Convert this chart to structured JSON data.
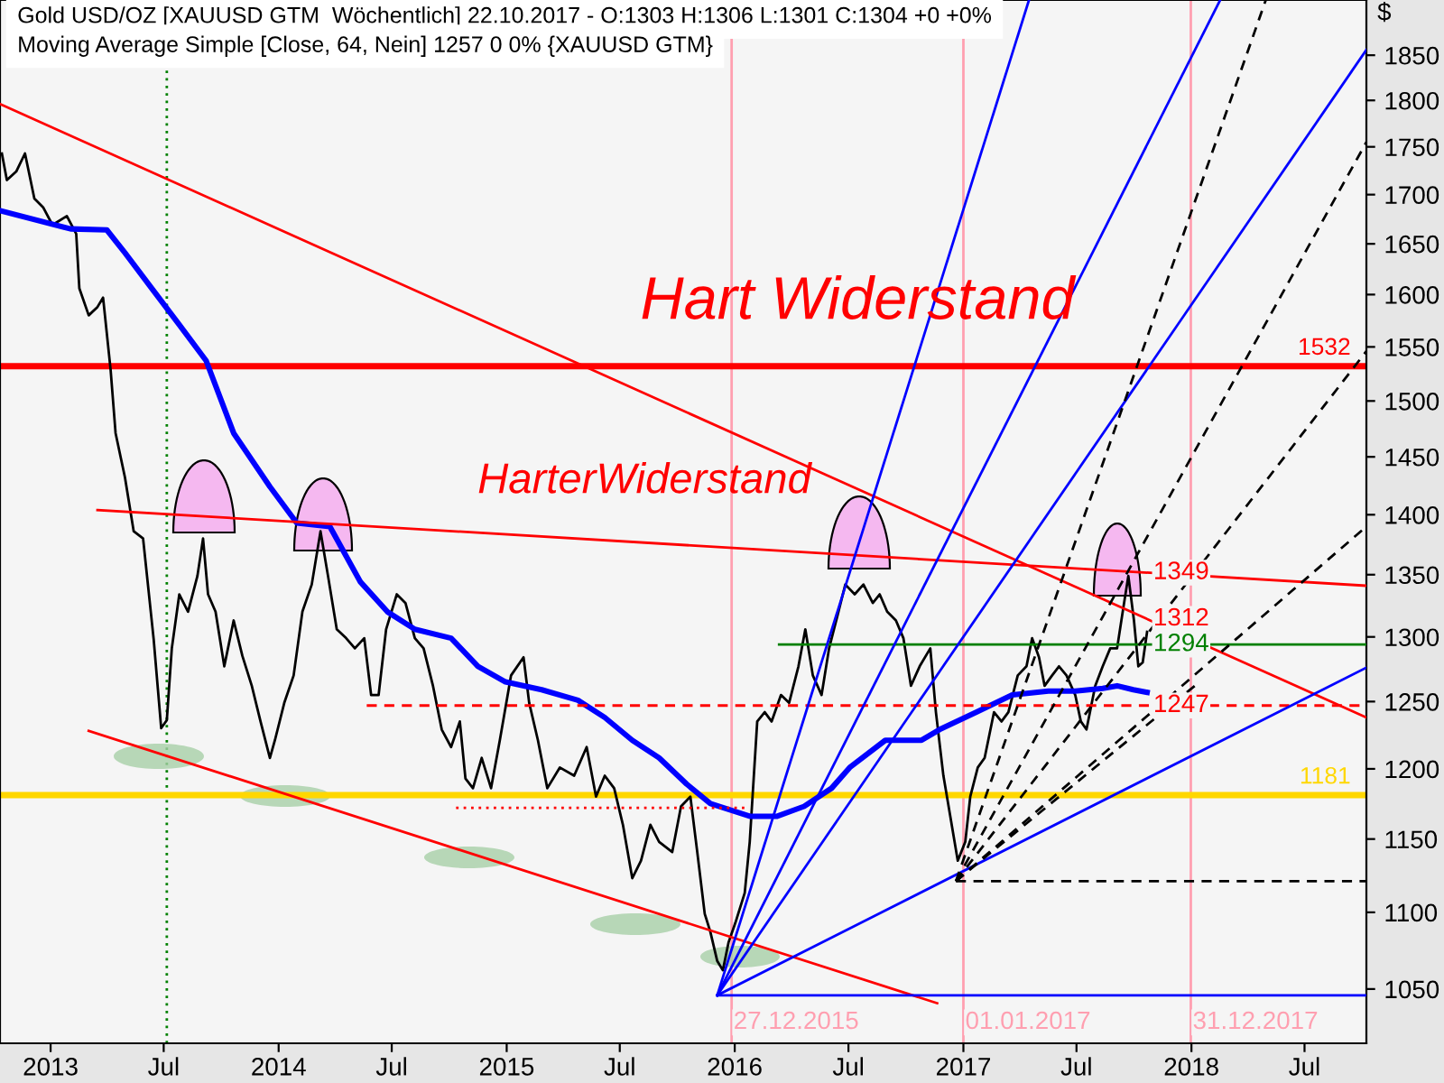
{
  "chart_data": {
    "type": "line",
    "title": "Gold USD/OZ [XAUUSD GTM  Wöchentlich] 22.10.2017 - O:1303 H:1306 L:1301 C:1304 +0 +0%",
    "subtitle": "Moving Average Simple [Close, 64, Nein] 1257 0 0% {XAUUSD GTM}",
    "ylabel": "$",
    "log": "y",
    "xlim": [
      "2012-10-12",
      "2018-10-08"
    ],
    "ylim": [
      1016,
      1913
    ],
    "xticks": [
      {
        "value": "2013-01-01",
        "label": "2013"
      },
      {
        "value": "2013-07-01",
        "label": "Jul"
      },
      {
        "value": "2014-01-01",
        "label": "2014"
      },
      {
        "value": "2014-07-01",
        "label": "Jul"
      },
      {
        "value": "2015-01-01",
        "label": "2015"
      },
      {
        "value": "2015-07-01",
        "label": "Jul"
      },
      {
        "value": "2016-01-01",
        "label": "2016"
      },
      {
        "value": "2016-07-01",
        "label": "Jul"
      },
      {
        "value": "2017-01-01",
        "label": "2017"
      },
      {
        "value": "2017-07-01",
        "label": "Jul"
      },
      {
        "value": "2018-01-01",
        "label": "2018"
      },
      {
        "value": "2018-07-01",
        "label": "Jul"
      }
    ],
    "yticks": [
      1050,
      1100,
      1150,
      1200,
      1250,
      1300,
      1350,
      1400,
      1450,
      1500,
      1550,
      1600,
      1650,
      1700,
      1750,
      1800,
      1850
    ],
    "marker": "none",
    "series": [
      {
        "color": "#000000",
        "x": [
          "2012-10-15",
          "2012-10-23",
          "2012-11-07",
          "2012-11-21",
          "2012-12-06",
          "2012-12-20",
          "2013-01-04",
          "2013-01-27",
          "2013-02-11",
          "2013-02-16",
          "2013-03-03",
          "2013-03-17",
          "2013-03-26",
          "2013-04-07",
          "2013-04-15",
          "2013-04-30",
          "2013-05-14",
          "2013-05-29",
          "2013-06-15",
          "2013-06-27",
          "2013-07-06",
          "2013-07-14",
          "2013-07-26",
          "2013-08-09",
          "2013-08-24",
          "2013-09-02",
          "2013-09-10",
          "2013-09-22",
          "2013-10-06",
          "2013-10-21",
          "2013-11-04",
          "2013-11-19",
          "2013-12-03",
          "2013-12-18",
          "2013-12-26",
          "2014-01-10",
          "2014-01-25",
          "2014-02-08",
          "2014-02-23",
          "2014-03-09",
          "2014-03-21",
          "2014-04-04",
          "2014-04-19",
          "2014-05-03",
          "2014-05-18",
          "2014-05-29",
          "2014-06-10",
          "2014-06-22",
          "2014-07-09",
          "2014-07-23",
          "2014-08-07",
          "2014-08-21",
          "2014-09-05",
          "2014-09-19",
          "2014-10-04",
          "2014-10-18",
          "2014-10-27",
          "2014-11-08",
          "2014-11-22",
          "2014-12-07",
          "2014-12-21",
          "2015-01-08",
          "2015-01-28",
          "2015-02-06",
          "2015-02-20",
          "2015-03-07",
          "2015-03-27",
          "2015-04-19",
          "2015-05-09",
          "2015-05-24",
          "2015-06-07",
          "2015-06-22",
          "2015-07-06",
          "2015-07-21",
          "2015-08-04",
          "2015-08-19",
          "2015-09-02",
          "2015-09-23",
          "2015-10-07",
          "2015-10-22",
          "2015-11-02",
          "2015-11-14",
          "2015-11-23",
          "2015-12-04",
          "2015-12-13",
          "2015-12-22",
          "2016-01-02",
          "2016-01-17",
          "2016-01-25",
          "2016-02-06",
          "2016-02-18",
          "2016-02-29",
          "2016-03-15",
          "2016-03-28",
          "2016-04-12",
          "2016-04-23",
          "2016-05-05",
          "2016-05-19",
          "2016-05-31",
          "2016-06-15",
          "2016-06-26",
          "2016-07-11",
          "2016-07-25",
          "2016-08-09",
          "2016-08-20",
          "2016-09-01",
          "2016-09-15",
          "2016-09-27",
          "2016-10-09",
          "2016-10-23",
          "2016-11-09",
          "2016-11-18",
          "2016-11-30",
          "2016-12-11",
          "2016-12-23",
          "2017-01-04",
          "2017-01-12",
          "2017-01-24",
          "2017-02-04",
          "2017-02-19",
          "2017-03-03",
          "2017-03-14",
          "2017-03-29",
          "2017-04-12",
          "2017-04-21",
          "2017-05-02",
          "2017-05-11",
          "2017-05-23",
          "2017-06-03",
          "2017-06-15",
          "2017-06-29",
          "2017-07-08",
          "2017-07-17",
          "2017-07-31",
          "2017-08-12",
          "2017-08-24",
          "2017-09-04",
          "2017-09-13",
          "2017-09-22",
          "2017-10-01",
          "2017-10-08",
          "2017-10-15",
          "2017-10-22"
        ],
        "values": [
          1743,
          1715,
          1724,
          1743,
          1696,
          1687,
          1669,
          1678,
          1660,
          1606,
          1580,
          1588,
          1597,
          1529,
          1471,
          1432,
          1386,
          1380,
          1298,
          1230,
          1236,
          1291,
          1334,
          1320,
          1349,
          1380,
          1334,
          1320,
          1277,
          1313,
          1285,
          1262,
          1235,
          1208,
          1221,
          1249,
          1270,
          1320,
          1342,
          1386,
          1349,
          1306,
          1299,
          1291,
          1299,
          1255,
          1255,
          1306,
          1334,
          1327,
          1299,
          1291,
          1262,
          1229,
          1216,
          1235,
          1193,
          1186,
          1208,
          1186,
          1221,
          1270,
          1284,
          1249,
          1221,
          1186,
          1201,
          1195,
          1216,
          1180,
          1195,
          1186,
          1160,
          1123,
          1135,
          1160,
          1148,
          1141,
          1173,
          1180,
          1141,
          1099,
          1087,
          1068,
          1062,
          1080,
          1093,
          1113,
          1148,
          1235,
          1242,
          1235,
          1255,
          1249,
          1277,
          1306,
          1270,
          1255,
          1291,
          1320,
          1342,
          1334,
          1342,
          1327,
          1334,
          1320,
          1313,
          1299,
          1262,
          1277,
          1291,
          1242,
          1195,
          1166,
          1135,
          1148,
          1180,
          1201,
          1208,
          1242,
          1235,
          1242,
          1270,
          1277,
          1299,
          1284,
          1262,
          1270,
          1277,
          1270,
          1255,
          1235,
          1229,
          1262,
          1277,
          1291,
          1291,
          1320,
          1349,
          1313,
          1277,
          1280,
          1304
        ]
      },
      {
        "color": "#0000ff",
        "x": [
          "2012-10-15",
          "2013-02-02",
          "2013-04-01",
          "2013-04-30",
          "2013-06-12",
          "2013-07-26",
          "2013-09-07",
          "2013-10-21",
          "2013-12-18",
          "2014-01-30",
          "2014-03-24",
          "2014-05-12",
          "2014-06-24",
          "2014-08-07",
          "2014-10-04",
          "2014-11-16",
          "2014-12-30",
          "2015-02-26",
          "2015-04-25",
          "2015-06-07",
          "2015-07-21",
          "2015-09-02",
          "2015-10-16",
          "2015-11-23",
          "2016-01-25",
          "2016-03-09",
          "2016-04-21",
          "2016-06-04",
          "2016-07-03",
          "2016-08-29",
          "2016-10-26",
          "2016-11-24",
          "2017-01-22",
          "2017-03-20",
          "2017-05-17",
          "2017-06-29",
          "2017-08-12",
          "2017-09-04",
          "2017-09-30",
          "2017-10-22"
        ],
        "values": [
          1683,
          1665,
          1664,
          1641,
          1606,
          1571,
          1537,
          1471,
          1424,
          1393,
          1390,
          1344,
          1320,
          1306,
          1299,
          1277,
          1265,
          1259,
          1251,
          1238,
          1221,
          1208,
          1189,
          1175,
          1166,
          1166,
          1173,
          1186,
          1201,
          1221,
          1221,
          1229,
          1242,
          1255,
          1258,
          1258,
          1260,
          1262,
          1259,
          1257
        ]
      },
      {
        "name": "1349",
        "color": "#ff0000",
        "x": [
          "2013-03-17",
          "2018-10-08"
        ],
        "values": [
          1404,
          1341
        ]
      },
      {
        "name": "1312",
        "color": "#ff0000",
        "x": [
          "2012-10-12",
          "2018-10-08"
        ],
        "values": [
          1796,
          1238
        ]
      },
      {
        "color": "#ff0000",
        "x": [
          "2013-03-03",
          "2016-11-20"
        ],
        "values": [
          1228,
          1041
        ]
      },
      {
        "name": "1294",
        "color": "#008000",
        "x": [
          "2016-03-12",
          "2018-10-08"
        ],
        "values": [
          1294,
          1294
        ]
      },
      {
        "name": "1247",
        "color": "#ff0000",
        "line_style": "dashed",
        "x": [
          "2014-05-22",
          "2018-10-08"
        ],
        "values": [
          1247,
          1247
        ]
      },
      {
        "color": "#ff0000",
        "line_style": "dotted",
        "x": [
          "2014-10-12",
          "2016-01-17"
        ],
        "values": [
          1172,
          1172
        ]
      },
      {
        "color": "#000000",
        "line_style": "dashed",
        "x": [
          "2016-12-20",
          "2018-10-08"
        ],
        "values": [
          1121,
          1121
        ]
      },
      {
        "color": "#0000ff",
        "x": [
          "2015-12-04",
          "2018-10-08"
        ],
        "values": [
          1046,
          1046
        ]
      },
      {
        "color": "#0000ff",
        "x": [
          "2015-12-04",
          "2017-04-16"
        ],
        "values": [
          1046,
          1913
        ]
      },
      {
        "color": "#0000ff",
        "x": [
          "2015-12-04",
          "2018-02-16"
        ],
        "values": [
          1046,
          1913
        ]
      },
      {
        "color": "#0000ff",
        "x": [
          "2015-12-04",
          "2018-10-08"
        ],
        "values": [
          1046,
          1856
        ]
      },
      {
        "color": "#0000ff",
        "x": [
          "2015-12-04",
          "2018-10-08"
        ],
        "values": [
          1046,
          1276
        ]
      },
      {
        "color": "#000000",
        "line_style": "dashed",
        "x": [
          "2016-12-20",
          "2018-04-30"
        ],
        "values": [
          1121,
          1913
        ]
      },
      {
        "color": "#000000",
        "line_style": "dashed",
        "x": [
          "2016-12-20",
          "2018-10-08"
        ],
        "values": [
          1121,
          1755
        ]
      },
      {
        "color": "#000000",
        "line_style": "dashed",
        "x": [
          "2016-12-20",
          "2018-10-08"
        ],
        "values": [
          1121,
          1546
        ]
      },
      {
        "color": "#000000",
        "line_style": "dashed",
        "x": [
          "2016-12-20",
          "2018-10-08"
        ],
        "values": [
          1121,
          1390
        ]
      },
      {
        "color": "#000000",
        "line_style": "dashed",
        "x": [
          "2016-12-20",
          "2018-01-14"
        ],
        "values": [
          1121,
          1265
        ]
      }
    ],
    "ref_lines": [
      {
        "axis": "y",
        "value": 1532,
        "label": "1532",
        "color": "#ff0000"
      },
      {
        "axis": "y",
        "value": 1181,
        "label": "1181",
        "color": "#ffd700"
      },
      {
        "axis": "x",
        "value": "2015-12-27",
        "label": "27.12.2015",
        "color": "#ff9fb0"
      },
      {
        "axis": "x",
        "value": "2017-01-01",
        "label": "01.01.2017",
        "color": "#ff9fb0"
      },
      {
        "axis": "x",
        "value": "2017-12-31",
        "label": "31.12.2017",
        "color": "#ff9fb0"
      },
      {
        "axis": "x",
        "value": "2013-07-06",
        "color": "#008000",
        "line_style": "dotted"
      }
    ],
    "annotations": [
      "Hart Widerstand",
      "HarterWiderstand"
    ]
  }
}
